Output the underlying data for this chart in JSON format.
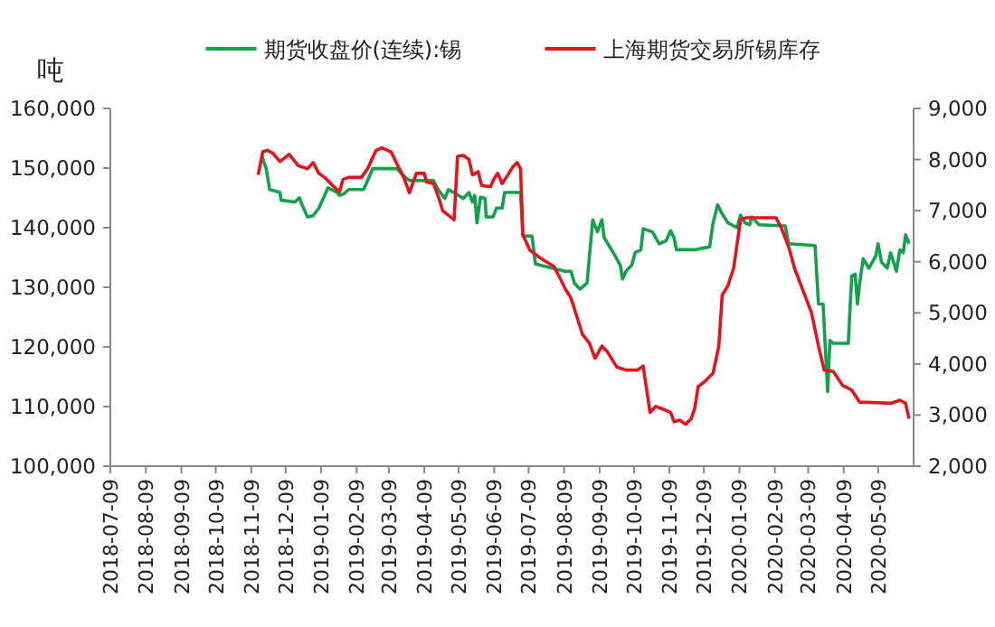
{
  "chart_data": {
    "type": "line",
    "ylabel": "吨",
    "legend": "top",
    "xlim": [
      "2018-07-09",
      "2020-06-09"
    ],
    "xticks": [
      "2018-07-09",
      "2018-08-09",
      "2018-09-09",
      "2018-10-09",
      "2018-11-09",
      "2018-12-09",
      "2019-01-09",
      "2019-02-09",
      "2019-03-09",
      "2019-04-09",
      "2019-05-09",
      "2019-06-09",
      "2019-07-09",
      "2019-08-09",
      "2019-09-09",
      "2019-10-09",
      "2019-11-09",
      "2019-12-09",
      "2020-01-09",
      "2020-02-09",
      "2020-03-09",
      "2020-04-09",
      "2020-05-09"
    ],
    "ylim": [
      100000,
      160000
    ],
    "yticks": [
      {
        "value": 100000,
        "label": "100,000"
      },
      {
        "value": 110000,
        "label": "110,000"
      },
      {
        "value": 120000,
        "label": "120,000"
      },
      {
        "value": 130000,
        "label": "130,000"
      },
      {
        "value": 140000,
        "label": "140,000"
      },
      {
        "value": 150000,
        "label": "150,000"
      },
      {
        "value": 160000,
        "label": "160,000"
      }
    ],
    "y2lim": [
      2000,
      9000
    ],
    "y2ticks": [
      {
        "value": 2000,
        "label": "2,000"
      },
      {
        "value": 3000,
        "label": "3,000"
      },
      {
        "value": 4000,
        "label": "4,000"
      },
      {
        "value": 5000,
        "label": "5,000"
      },
      {
        "value": 6000,
        "label": "6,000"
      },
      {
        "value": 7000,
        "label": "7,000"
      },
      {
        "value": 8000,
        "label": "8,000"
      },
      {
        "value": 9000,
        "label": "9,000"
      }
    ],
    "series": [
      {
        "name": "期货收盘价(连续):锡",
        "color": "#13a24a",
        "x": [
          "2018-11-18",
          "2018-11-22",
          "2018-11-25",
          "2018-12-04",
          "2018-12-05",
          "2018-12-17",
          "2018-12-21",
          "2018-12-23",
          "2018-12-28",
          "2019-01-02",
          "2019-01-07",
          "2019-01-12",
          "2019-01-15",
          "2019-01-23",
          "2019-01-25",
          "2019-01-29",
          "2019-02-02",
          "2019-02-15",
          "2019-02-19",
          "2019-02-23",
          "2019-03-16",
          "2019-03-22",
          "2019-03-27",
          "2019-04-17",
          "2019-04-21",
          "2019-04-27",
          "2019-04-30",
          "2019-05-05",
          "2019-05-13",
          "2019-05-18",
          "2019-05-21",
          "2019-05-23",
          "2019-05-25",
          "2019-05-28",
          "2019-06-01",
          "2019-06-02",
          "2019-06-08",
          "2019-06-11",
          "2019-06-16",
          "2019-06-18",
          "2019-07-02",
          "2019-07-04",
          "2019-07-12",
          "2019-07-15",
          "2019-08-10",
          "2019-08-15",
          "2019-08-18",
          "2019-08-23",
          "2019-08-29",
          "2019-09-03",
          "2019-09-07",
          "2019-09-11",
          "2019-09-13",
          "2019-09-21",
          "2019-09-27",
          "2019-09-29",
          "2019-10-02",
          "2019-10-07",
          "2019-10-10",
          "2019-10-15",
          "2019-10-17",
          "2019-10-25",
          "2019-10-31",
          "2019-11-06",
          "2019-11-10",
          "2019-11-13",
          "2019-11-15",
          "2019-12-01",
          "2019-12-14",
          "2019-12-17",
          "2019-12-21",
          "2019-12-25",
          "2019-12-30",
          "2020-01-07",
          "2020-01-10",
          "2020-01-14",
          "2020-01-18",
          "2020-01-20",
          "2020-01-26",
          "2020-02-18",
          "2020-02-21",
          "2020-03-15",
          "2020-03-18",
          "2020-03-22",
          "2020-03-26",
          "2020-03-28",
          "2020-03-31",
          "2020-04-13",
          "2020-04-16",
          "2020-04-19",
          "2020-04-21",
          "2020-04-23",
          "2020-04-26",
          "2020-05-01",
          "2020-05-07",
          "2020-05-09",
          "2020-05-12",
          "2020-05-17",
          "2020-05-20",
          "2020-05-25",
          "2020-05-28",
          "2020-05-31",
          "2020-06-02",
          "2020-06-05"
        ],
        "values": [
          152100,
          149900,
          146400,
          145900,
          144600,
          144300,
          145000,
          144000,
          141800,
          142000,
          143300,
          145400,
          146700,
          145900,
          145400,
          145700,
          146400,
          146400,
          148100,
          149900,
          149900,
          148700,
          147900,
          147900,
          146400,
          144900,
          146400,
          145900,
          144900,
          145900,
          144300,
          145400,
          140800,
          145100,
          144900,
          141800,
          141800,
          143300,
          143300,
          145900,
          145900,
          138600,
          138600,
          133900,
          132700,
          132700,
          130700,
          129700,
          130700,
          141300,
          139300,
          141300,
          138300,
          135800,
          133700,
          131400,
          132700,
          133700,
          135800,
          136300,
          139800,
          139300,
          137300,
          137800,
          139500,
          138300,
          136300,
          136300,
          136800,
          140800,
          143800,
          142300,
          140800,
          140000,
          142100,
          140800,
          140500,
          141800,
          140500,
          140300,
          137300,
          137000,
          127200,
          127200,
          112500,
          121100,
          120600,
          120600,
          131900,
          132200,
          127200,
          130700,
          134800,
          133200,
          135300,
          137300,
          134200,
          133200,
          135800,
          132700,
          136300,
          135800,
          138800,
          137300
        ]
      },
      {
        "name": "上海期货交易所锡库存",
        "color": "#e3141c",
        "axis": "y2",
        "x": [
          "2018-11-15",
          "2018-11-19",
          "2018-11-23",
          "2018-11-28",
          "2018-12-04",
          "2018-12-12",
          "2018-12-20",
          "2018-12-28",
          "2019-01-02",
          "2019-01-07",
          "2019-01-12",
          "2019-01-20",
          "2019-01-25",
          "2019-01-28",
          "2019-02-02",
          "2019-02-13",
          "2019-02-18",
          "2019-02-26",
          "2019-03-03",
          "2019-03-11",
          "2019-03-16",
          "2019-03-22",
          "2019-03-27",
          "2019-04-02",
          "2019-04-09",
          "2019-04-11",
          "2019-04-17",
          "2019-04-22",
          "2019-04-25",
          "2019-05-05",
          "2019-05-08",
          "2019-05-13",
          "2019-05-18",
          "2019-05-21",
          "2019-05-26",
          "2019-05-29",
          "2019-06-06",
          "2019-06-08",
          "2019-06-12",
          "2019-06-16",
          "2019-06-21",
          "2019-06-25",
          "2019-06-29",
          "2019-07-02",
          "2019-07-04",
          "2019-07-10",
          "2019-07-20",
          "2019-07-31",
          "2019-08-05",
          "2019-08-10",
          "2019-08-15",
          "2019-08-20",
          "2019-08-25",
          "2019-08-31",
          "2019-09-05",
          "2019-09-11",
          "2019-09-16",
          "2019-09-24",
          "2019-10-02",
          "2019-10-12",
          "2019-10-17",
          "2019-10-23",
          "2019-10-28",
          "2019-11-04",
          "2019-11-10",
          "2019-11-13",
          "2019-11-18",
          "2019-11-23",
          "2019-11-28",
          "2019-12-01",
          "2019-12-04",
          "2019-12-09",
          "2019-12-17",
          "2019-12-22",
          "2019-12-25",
          "2019-12-30",
          "2020-01-04",
          "2020-01-10",
          "2020-01-15",
          "2020-02-10",
          "2020-02-15",
          "2020-02-21",
          "2020-02-26",
          "2020-03-02",
          "2020-03-07",
          "2020-03-12",
          "2020-03-18",
          "2020-03-23",
          "2020-03-31",
          "2020-04-08",
          "2020-04-16",
          "2020-04-23",
          "2020-04-29",
          "2020-05-20",
          "2020-05-28",
          "2020-06-02",
          "2020-06-05"
        ],
        "values": [
          7700,
          8150,
          8180,
          8120,
          7960,
          8100,
          7880,
          7820,
          7940,
          7730,
          7650,
          7470,
          7370,
          7610,
          7650,
          7650,
          7800,
          8180,
          8230,
          8150,
          7920,
          7650,
          7350,
          7730,
          7730,
          7560,
          7530,
          7230,
          7000,
          6820,
          8060,
          8080,
          8000,
          7700,
          7760,
          7490,
          7470,
          7590,
          7730,
          7530,
          7700,
          7850,
          7940,
          7820,
          6530,
          6230,
          6060,
          5910,
          5700,
          5470,
          5290,
          4940,
          4580,
          4410,
          4110,
          4350,
          4230,
          3940,
          3880,
          3880,
          3960,
          3050,
          3170,
          3110,
          3050,
          2870,
          2900,
          2820,
          2930,
          3130,
          3560,
          3640,
          3820,
          4350,
          5350,
          5530,
          5880,
          6820,
          6860,
          6860,
          6640,
          6290,
          5880,
          5580,
          5290,
          5000,
          4350,
          3880,
          3850,
          3580,
          3490,
          3250,
          3250,
          3230,
          3290,
          3230,
          2930
        ]
      }
    ]
  }
}
